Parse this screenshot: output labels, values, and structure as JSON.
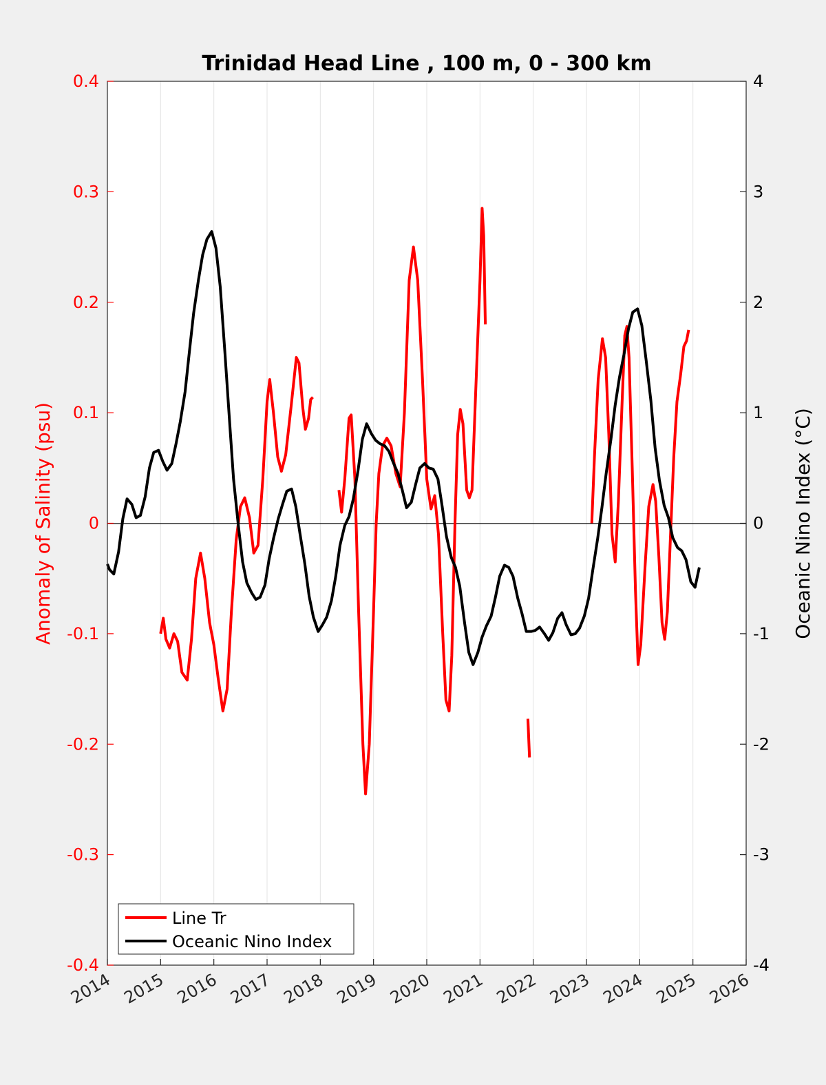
{
  "chart_data": {
    "type": "line",
    "title": "Trinidad Head Line , 100 m, 0 - 300 km",
    "ylabel_left": "Anomaly of Salinity (psu)",
    "ylabel_right": "Oceanic Nino Index (°C)",
    "xlim": [
      2014,
      2026
    ],
    "ylim_left": [
      -0.4,
      0.4
    ],
    "ylim_right": [
      -4,
      4
    ],
    "xticks": [
      "2014",
      "2015",
      "2016",
      "2017",
      "2018",
      "2019",
      "2020",
      "2021",
      "2022",
      "2023",
      "2024",
      "2025",
      "2026"
    ],
    "yticks_left": [
      "-0.4",
      "-0.3",
      "-0.2",
      "-0.1",
      "0",
      "0.1",
      "0.2",
      "0.3",
      "0.4"
    ],
    "yticks_right": [
      "-4",
      "-3",
      "-2",
      "-1",
      "0",
      "1",
      "2",
      "3",
      "4"
    ],
    "grid": "vertical",
    "legend_position": "bottom-left",
    "series": [
      {
        "name": "Line Tr",
        "axis": "left",
        "color": "#ff0000",
        "segments": [
          [
            [
              2015.0,
              -0.1
            ],
            [
              2015.05,
              -0.086
            ],
            [
              2015.1,
              -0.105
            ],
            [
              2015.17,
              -0.113
            ],
            [
              2015.25,
              -0.1
            ],
            [
              2015.32,
              -0.107
            ],
            [
              2015.4,
              -0.135
            ],
            [
              2015.5,
              -0.142
            ],
            [
              2015.58,
              -0.105
            ],
            [
              2015.66,
              -0.05
            ],
            [
              2015.75,
              -0.027
            ],
            [
              2015.83,
              -0.05
            ],
            [
              2015.92,
              -0.09
            ],
            [
              2016.0,
              -0.11
            ],
            [
              2016.08,
              -0.14
            ],
            [
              2016.17,
              -0.17
            ],
            [
              2016.25,
              -0.15
            ],
            [
              2016.33,
              -0.08
            ],
            [
              2016.42,
              -0.015
            ],
            [
              2016.5,
              0.015
            ],
            [
              2016.58,
              0.023
            ],
            [
              2016.67,
              0.005
            ],
            [
              2016.75,
              -0.027
            ],
            [
              2016.83,
              -0.02
            ],
            [
              2016.92,
              0.04
            ],
            [
              2017.0,
              0.11
            ],
            [
              2017.05,
              0.13
            ],
            [
              2017.12,
              0.1
            ],
            [
              2017.2,
              0.06
            ],
            [
              2017.27,
              0.047
            ],
            [
              2017.35,
              0.062
            ],
            [
              2017.45,
              0.105
            ],
            [
              2017.55,
              0.15
            ],
            [
              2017.6,
              0.145
            ],
            [
              2017.67,
              0.105
            ],
            [
              2017.72,
              0.085
            ],
            [
              2017.78,
              0.095
            ],
            [
              2017.82,
              0.112
            ],
            [
              2017.86,
              0.114
            ]
          ],
          [
            [
              2018.35,
              0.03
            ],
            [
              2018.4,
              0.01
            ],
            [
              2018.46,
              0.04
            ],
            [
              2018.54,
              0.095
            ],
            [
              2018.58,
              0.098
            ],
            [
              2018.65,
              0.04
            ],
            [
              2018.72,
              -0.08
            ],
            [
              2018.8,
              -0.2
            ],
            [
              2018.85,
              -0.245
            ],
            [
              2018.92,
              -0.2
            ],
            [
              2019.0,
              -0.08
            ],
            [
              2019.05,
              0.0
            ],
            [
              2019.1,
              0.045
            ],
            [
              2019.17,
              0.07
            ],
            [
              2019.25,
              0.077
            ],
            [
              2019.33,
              0.07
            ],
            [
              2019.42,
              0.045
            ],
            [
              2019.5,
              0.033
            ],
            [
              2019.58,
              0.1
            ],
            [
              2019.67,
              0.22
            ],
            [
              2019.75,
              0.25
            ],
            [
              2019.83,
              0.22
            ],
            [
              2019.92,
              0.13
            ],
            [
              2020.0,
              0.04
            ],
            [
              2020.08,
              0.013
            ],
            [
              2020.15,
              0.025
            ],
            [
              2020.22,
              -0.01
            ],
            [
              2020.3,
              -0.1
            ],
            [
              2020.36,
              -0.16
            ],
            [
              2020.42,
              -0.17
            ],
            [
              2020.47,
              -0.12
            ],
            [
              2020.53,
              0.0
            ],
            [
              2020.58,
              0.08
            ],
            [
              2020.63,
              0.103
            ],
            [
              2020.68,
              0.09
            ],
            [
              2020.75,
              0.03
            ],
            [
              2020.8,
              0.023
            ],
            [
              2020.85,
              0.03
            ],
            [
              2020.92,
              0.12
            ],
            [
              2021.0,
              0.22
            ],
            [
              2021.04,
              0.285
            ],
            [
              2021.07,
              0.26
            ],
            [
              2021.1,
              0.18
            ]
          ],
          [
            [
              2021.9,
              -0.177
            ],
            [
              2021.93,
              -0.212
            ]
          ],
          [
            [
              2023.1,
              0.0
            ],
            [
              2023.15,
              0.06
            ],
            [
              2023.22,
              0.13
            ],
            [
              2023.3,
              0.167
            ],
            [
              2023.36,
              0.15
            ],
            [
              2023.42,
              0.08
            ],
            [
              2023.48,
              -0.01
            ],
            [
              2023.54,
              -0.035
            ],
            [
              2023.6,
              0.02
            ],
            [
              2023.67,
              0.11
            ],
            [
              2023.72,
              0.17
            ],
            [
              2023.76,
              0.178
            ],
            [
              2023.8,
              0.15
            ],
            [
              2023.86,
              0.05
            ],
            [
              2023.92,
              -0.06
            ],
            [
              2023.97,
              -0.128
            ],
            [
              2024.02,
              -0.11
            ],
            [
              2024.1,
              -0.04
            ],
            [
              2024.17,
              0.015
            ],
            [
              2024.25,
              0.035
            ],
            [
              2024.3,
              0.02
            ],
            [
              2024.36,
              -0.03
            ],
            [
              2024.42,
              -0.09
            ],
            [
              2024.47,
              -0.105
            ],
            [
              2024.52,
              -0.08
            ],
            [
              2024.58,
              -0.01
            ],
            [
              2024.64,
              0.06
            ],
            [
              2024.7,
              0.11
            ],
            [
              2024.77,
              0.135
            ],
            [
              2024.83,
              0.16
            ],
            [
              2024.88,
              0.165
            ],
            [
              2024.92,
              0.175
            ]
          ]
        ]
      },
      {
        "name": "Oceanic Nino Index",
        "axis": "right",
        "color": "#000000",
        "segments": [
          [
            [
              2014.0,
              -0.37
            ],
            [
              2014.04,
              -0.42
            ],
            [
              2014.12,
              -0.46
            ],
            [
              2014.21,
              -0.26
            ],
            [
              2014.29,
              0.04
            ],
            [
              2014.37,
              0.22
            ],
            [
              2014.46,
              0.17
            ],
            [
              2014.54,
              0.05
            ],
            [
              2014.62,
              0.07
            ],
            [
              2014.71,
              0.24
            ],
            [
              2014.79,
              0.5
            ],
            [
              2014.87,
              0.64
            ],
            [
              2014.96,
              0.66
            ],
            [
              2015.04,
              0.56
            ],
            [
              2015.12,
              0.48
            ],
            [
              2015.21,
              0.54
            ],
            [
              2015.29,
              0.72
            ],
            [
              2015.37,
              0.92
            ],
            [
              2015.46,
              1.19
            ],
            [
              2015.54,
              1.55
            ],
            [
              2015.62,
              1.9
            ],
            [
              2015.71,
              2.2
            ],
            [
              2015.79,
              2.43
            ],
            [
              2015.87,
              2.57
            ],
            [
              2015.96,
              2.64
            ],
            [
              2016.04,
              2.49
            ],
            [
              2016.12,
              2.14
            ],
            [
              2016.21,
              1.53
            ],
            [
              2016.29,
              0.96
            ],
            [
              2016.37,
              0.4
            ],
            [
              2016.46,
              -0.02
            ],
            [
              2016.54,
              -0.35
            ],
            [
              2016.62,
              -0.54
            ],
            [
              2016.71,
              -0.63
            ],
            [
              2016.79,
              -0.69
            ],
            [
              2016.87,
              -0.67
            ],
            [
              2016.96,
              -0.56
            ],
            [
              2017.04,
              -0.32
            ],
            [
              2017.12,
              -0.14
            ],
            [
              2017.21,
              0.04
            ],
            [
              2017.29,
              0.17
            ],
            [
              2017.37,
              0.29
            ],
            [
              2017.46,
              0.31
            ],
            [
              2017.54,
              0.15
            ],
            [
              2017.62,
              -0.1
            ],
            [
              2017.71,
              -0.37
            ],
            [
              2017.79,
              -0.66
            ],
            [
              2017.87,
              -0.85
            ],
            [
              2017.96,
              -0.98
            ],
            [
              2018.04,
              -0.92
            ],
            [
              2018.12,
              -0.85
            ],
            [
              2018.21,
              -0.7
            ],
            [
              2018.29,
              -0.48
            ],
            [
              2018.37,
              -0.2
            ],
            [
              2018.46,
              -0.02
            ],
            [
              2018.54,
              0.06
            ],
            [
              2018.62,
              0.22
            ],
            [
              2018.71,
              0.48
            ],
            [
              2018.79,
              0.76
            ],
            [
              2018.87,
              0.9
            ],
            [
              2018.96,
              0.81
            ],
            [
              2019.04,
              0.75
            ],
            [
              2019.12,
              0.72
            ],
            [
              2019.21,
              0.7
            ],
            [
              2019.29,
              0.65
            ],
            [
              2019.37,
              0.55
            ],
            [
              2019.46,
              0.45
            ],
            [
              2019.54,
              0.3
            ],
            [
              2019.62,
              0.14
            ],
            [
              2019.71,
              0.19
            ],
            [
              2019.79,
              0.35
            ],
            [
              2019.87,
              0.5
            ],
            [
              2019.96,
              0.54
            ],
            [
              2020.04,
              0.5
            ],
            [
              2020.12,
              0.49
            ],
            [
              2020.21,
              0.4
            ],
            [
              2020.29,
              0.15
            ],
            [
              2020.37,
              -0.12
            ],
            [
              2020.46,
              -0.31
            ],
            [
              2020.54,
              -0.4
            ],
            [
              2020.62,
              -0.57
            ],
            [
              2020.71,
              -0.9
            ],
            [
              2020.79,
              -1.17
            ],
            [
              2020.87,
              -1.28
            ],
            [
              2020.96,
              -1.17
            ],
            [
              2021.04,
              -1.03
            ],
            [
              2021.12,
              -0.93
            ],
            [
              2021.21,
              -0.84
            ],
            [
              2021.29,
              -0.67
            ],
            [
              2021.37,
              -0.48
            ],
            [
              2021.46,
              -0.38
            ],
            [
              2021.54,
              -0.4
            ],
            [
              2021.62,
              -0.48
            ],
            [
              2021.71,
              -0.68
            ],
            [
              2021.79,
              -0.82
            ],
            [
              2021.87,
              -0.98
            ],
            [
              2021.96,
              -0.98
            ],
            [
              2022.04,
              -0.97
            ],
            [
              2022.12,
              -0.94
            ],
            [
              2022.21,
              -1.0
            ],
            [
              2022.29,
              -1.06
            ],
            [
              2022.37,
              -0.99
            ],
            [
              2022.46,
              -0.86
            ],
            [
              2022.54,
              -0.81
            ],
            [
              2022.62,
              -0.92
            ],
            [
              2022.71,
              -1.01
            ],
            [
              2022.79,
              -1.0
            ],
            [
              2022.87,
              -0.95
            ],
            [
              2022.96,
              -0.84
            ],
            [
              2023.04,
              -0.68
            ],
            [
              2023.12,
              -0.42
            ],
            [
              2023.21,
              -0.14
            ],
            [
              2023.29,
              0.14
            ],
            [
              2023.37,
              0.45
            ],
            [
              2023.46,
              0.76
            ],
            [
              2023.54,
              1.07
            ],
            [
              2023.62,
              1.32
            ],
            [
              2023.71,
              1.54
            ],
            [
              2023.79,
              1.76
            ],
            [
              2023.87,
              1.91
            ],
            [
              2023.96,
              1.94
            ],
            [
              2024.04,
              1.79
            ],
            [
              2024.12,
              1.48
            ],
            [
              2024.21,
              1.11
            ],
            [
              2024.29,
              0.68
            ],
            [
              2024.37,
              0.39
            ],
            [
              2024.46,
              0.16
            ],
            [
              2024.54,
              0.05
            ],
            [
              2024.62,
              -0.13
            ],
            [
              2024.71,
              -0.22
            ],
            [
              2024.79,
              -0.25
            ],
            [
              2024.87,
              -0.33
            ],
            [
              2024.96,
              -0.53
            ],
            [
              2025.04,
              -0.58
            ],
            [
              2025.12,
              -0.4
            ]
          ]
        ]
      }
    ]
  }
}
